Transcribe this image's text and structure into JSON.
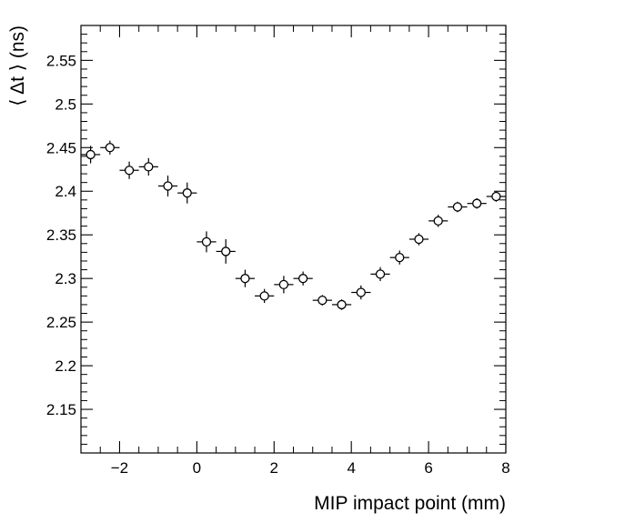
{
  "chart_data": {
    "type": "scatter",
    "xlabel": "MIP impact point (mm)",
    "ylabel": "⟨ Δt ⟩ (ns)",
    "xlim": [
      -3.0,
      8.0
    ],
    "ylim": [
      2.1,
      2.59
    ],
    "x_ticks": [
      -2,
      0,
      2,
      4,
      6,
      8
    ],
    "x_tick_labels": [
      "−2",
      "0",
      "2",
      "4",
      "6",
      "8"
    ],
    "y_ticks": [
      2.15,
      2.2,
      2.25,
      2.3,
      2.35,
      2.4,
      2.45,
      2.5,
      2.55
    ],
    "y_tick_labels": [
      "2.15",
      "2.2",
      "2.25",
      "2.3",
      "2.35",
      "2.4",
      "2.45",
      "2.5",
      "2.55"
    ],
    "grid": false,
    "marker": "open-circle",
    "x_err": 0.25,
    "points": [
      {
        "x": -2.75,
        "y": 2.442,
        "yerr": 0.01
      },
      {
        "x": -2.25,
        "y": 2.45,
        "yerr": 0.008
      },
      {
        "x": -1.75,
        "y": 2.424,
        "yerr": 0.01
      },
      {
        "x": -1.25,
        "y": 2.428,
        "yerr": 0.01
      },
      {
        "x": -0.75,
        "y": 2.406,
        "yerr": 0.012
      },
      {
        "x": -0.25,
        "y": 2.398,
        "yerr": 0.012
      },
      {
        "x": 0.25,
        "y": 2.342,
        "yerr": 0.012
      },
      {
        "x": 0.75,
        "y": 2.331,
        "yerr": 0.014
      },
      {
        "x": 1.25,
        "y": 2.3,
        "yerr": 0.01
      },
      {
        "x": 1.75,
        "y": 2.28,
        "yerr": 0.008
      },
      {
        "x": 2.25,
        "y": 2.293,
        "yerr": 0.01
      },
      {
        "x": 2.75,
        "y": 2.3,
        "yerr": 0.008
      },
      {
        "x": 3.25,
        "y": 2.275,
        "yerr": 0.006
      },
      {
        "x": 3.75,
        "y": 2.27,
        "yerr": 0.006
      },
      {
        "x": 4.25,
        "y": 2.284,
        "yerr": 0.008
      },
      {
        "x": 4.75,
        "y": 2.305,
        "yerr": 0.008
      },
      {
        "x": 5.25,
        "y": 2.324,
        "yerr": 0.008
      },
      {
        "x": 5.75,
        "y": 2.345,
        "yerr": 0.007
      },
      {
        "x": 6.25,
        "y": 2.366,
        "yerr": 0.007
      },
      {
        "x": 6.75,
        "y": 2.382,
        "yerr": 0.006
      },
      {
        "x": 7.25,
        "y": 2.386,
        "yerr": 0.006
      },
      {
        "x": 7.75,
        "y": 2.394,
        "yerr": 0.006
      }
    ]
  }
}
